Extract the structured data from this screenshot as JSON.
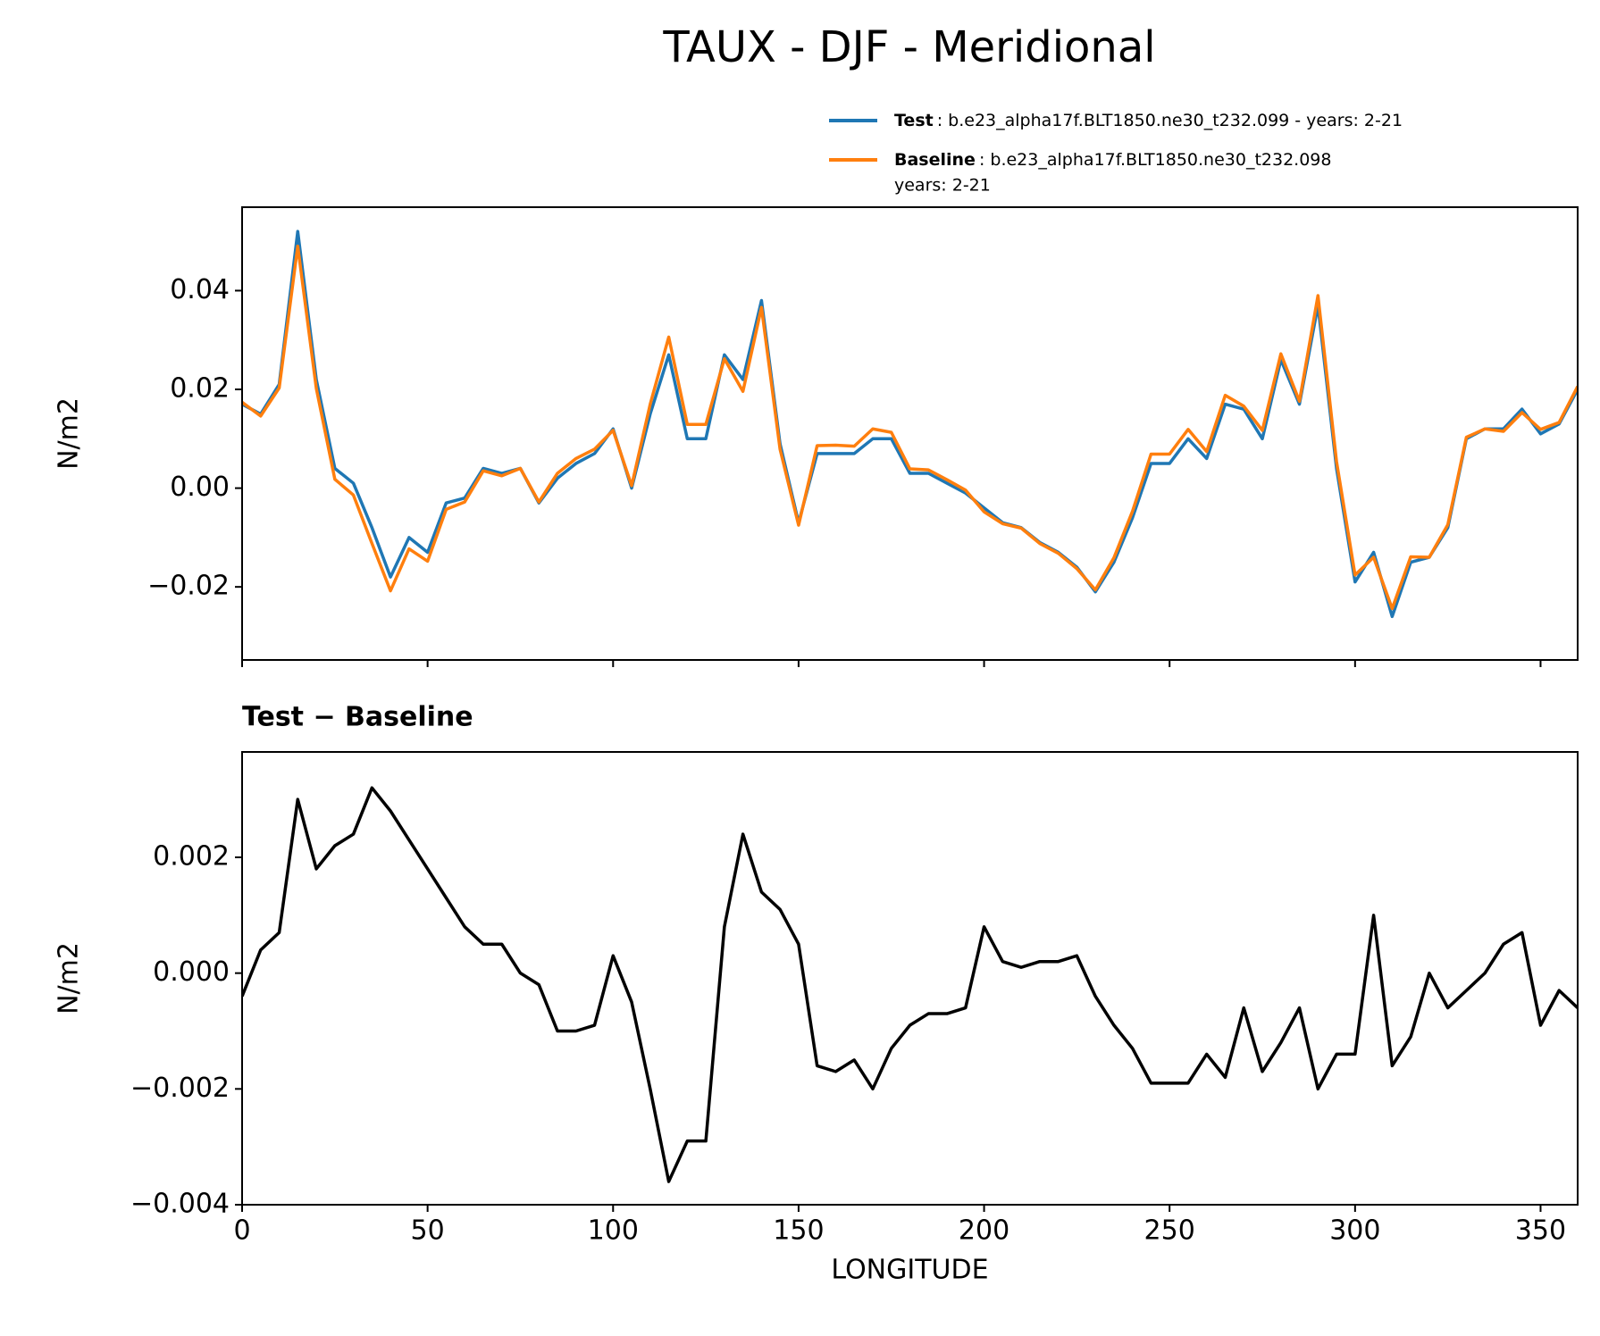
{
  "title": "TAUX - DJF - Meridional",
  "chart_data": [
    {
      "type": "line",
      "ylabel": "N/m2",
      "x": [
        0,
        5,
        10,
        15,
        20,
        25,
        30,
        35,
        40,
        45,
        50,
        55,
        60,
        65,
        70,
        75,
        80,
        85,
        90,
        95,
        100,
        105,
        110,
        115,
        120,
        125,
        130,
        135,
        140,
        145,
        150,
        155,
        160,
        165,
        170,
        175,
        180,
        185,
        190,
        195,
        200,
        205,
        210,
        215,
        220,
        225,
        230,
        235,
        240,
        245,
        250,
        255,
        260,
        265,
        270,
        275,
        280,
        285,
        290,
        295,
        300,
        305,
        310,
        315,
        320,
        325,
        330,
        335,
        340,
        345,
        350,
        355,
        360
      ],
      "series": [
        {
          "name": "Test",
          "description": ": b.e23_alpha17f.BLT1850.ne30_t232.099 - years: 2-21",
          "color": "#1f77b4",
          "values": [
            0.017,
            0.015,
            0.021,
            0.052,
            0.022,
            0.004,
            0.001,
            -0.008,
            -0.018,
            -0.01,
            -0.013,
            -0.003,
            -0.002,
            0.004,
            0.003,
            0.004,
            -0.003,
            0.002,
            0.005,
            0.007,
            0.012,
            0.0,
            0.015,
            0.027,
            0.01,
            0.01,
            0.027,
            0.022,
            0.038,
            0.009,
            -0.007,
            0.007,
            0.007,
            0.007,
            0.01,
            0.01,
            0.003,
            0.003,
            0.001,
            -0.001,
            -0.004,
            -0.007,
            -0.008,
            -0.011,
            -0.013,
            -0.016,
            -0.021,
            -0.015,
            -0.006,
            0.005,
            0.005,
            0.01,
            0.006,
            0.017,
            0.016,
            0.01,
            0.026,
            0.017,
            0.037,
            0.004,
            -0.019,
            -0.013,
            -0.026,
            -0.015,
            -0.014,
            -0.008,
            0.01,
            0.012,
            0.012,
            0.016,
            0.011,
            0.013,
            0.02
          ]
        },
        {
          "name": "Baseline",
          "description": ": b.e23_alpha17f.BLT1850.ne30_t232.098",
          "description_2": "years: 2-21",
          "color": "#ff7f0e",
          "values": [
            0.0174,
            0.0146,
            0.0203,
            0.049,
            0.0202,
            0.0018,
            -0.0014,
            -0.0112,
            -0.0208,
            -0.0123,
            -0.0148,
            -0.0043,
            -0.0028,
            0.0035,
            0.0025,
            0.004,
            -0.0028,
            0.003,
            0.006,
            0.0079,
            0.0117,
            0.0005,
            0.017,
            0.0306,
            0.0129,
            0.0129,
            0.0262,
            0.0196,
            0.0366,
            0.0079,
            -0.0075,
            0.0086,
            0.0087,
            0.0085,
            0.012,
            0.0113,
            0.0039,
            0.0037,
            0.0017,
            -0.0004,
            -0.0048,
            -0.0072,
            -0.0081,
            -0.0112,
            -0.0132,
            -0.0163,
            -0.0206,
            -0.0141,
            -0.0047,
            0.0069,
            0.0069,
            0.0119,
            0.0074,
            0.0188,
            0.0166,
            0.0117,
            0.0272,
            0.0176,
            0.039,
            0.0054,
            -0.0176,
            -0.014,
            -0.0244,
            -0.0139,
            -0.014,
            -0.0074,
            0.0103,
            0.012,
            0.0115,
            0.0153,
            0.0119,
            0.0133,
            0.0206
          ]
        }
      ],
      "xlim": [
        0,
        360
      ],
      "xticks": [
        0,
        50,
        100,
        150,
        200,
        250,
        300,
        350
      ],
      "show_xtick_labels": false,
      "ylim": [
        -0.0348,
        0.0569
      ],
      "yticks": [
        {
          "value": -0.02,
          "label": "−0.02"
        },
        {
          "value": 0,
          "label": "0.00"
        },
        {
          "value": 0.02,
          "label": "0.02"
        },
        0.04
      ],
      "legend": "upper right",
      "grid": false
    },
    {
      "type": "line",
      "title": "Test − Baseline",
      "xlabel": "LONGITUDE",
      "ylabel": "N/m2",
      "x": [
        0,
        5,
        10,
        15,
        20,
        25,
        30,
        35,
        40,
        45,
        50,
        55,
        60,
        65,
        70,
        75,
        80,
        85,
        90,
        95,
        100,
        105,
        110,
        115,
        120,
        125,
        130,
        135,
        140,
        145,
        150,
        155,
        160,
        165,
        170,
        175,
        180,
        185,
        190,
        195,
        200,
        205,
        210,
        215,
        220,
        225,
        230,
        235,
        240,
        245,
        250,
        255,
        260,
        265,
        270,
        275,
        280,
        285,
        290,
        295,
        300,
        305,
        310,
        315,
        320,
        325,
        330,
        335,
        340,
        345,
        350,
        355,
        360
      ],
      "series": [
        {
          "name": null,
          "color": "#000000",
          "values": [
            -0.0004,
            0.0004,
            0.0007,
            0.003,
            0.0018,
            0.0022,
            0.0024,
            0.0032,
            0.0028,
            0.0023,
            0.0018,
            0.0013,
            0.0008,
            0.0005,
            0.0005,
            0.0,
            -0.0002,
            -0.001,
            -0.001,
            -0.0009,
            0.0003,
            -0.0005,
            -0.002,
            -0.0036,
            -0.0029,
            -0.0029,
            0.0008,
            0.0024,
            0.0014,
            0.0011,
            0.0005,
            -0.0016,
            -0.0017,
            -0.0015,
            -0.002,
            -0.0013,
            -0.0009,
            -0.0007,
            -0.0007,
            -0.0006,
            0.0008,
            0.0002,
            0.0001,
            0.0002,
            0.0002,
            0.0003,
            -0.0004,
            -0.0009,
            -0.0013,
            -0.0019,
            -0.0019,
            -0.0019,
            -0.0014,
            -0.0018,
            -0.0006,
            -0.0017,
            -0.0012,
            -0.0006,
            -0.002,
            -0.0014,
            -0.0014,
            0.001,
            -0.0016,
            -0.0011,
            0.0,
            -0.0006,
            -0.0003,
            0.0,
            0.0005,
            0.0007,
            -0.0009,
            -0.0003,
            -0.0006
          ]
        }
      ],
      "xlim": [
        0,
        360
      ],
      "xticks": [
        0,
        50,
        100,
        150,
        200,
        250,
        300,
        350
      ],
      "show_xtick_labels": true,
      "ylim": [
        -0.004,
        0.00382
      ],
      "yticks": [
        {
          "value": -0.004,
          "label": "−0.004"
        },
        {
          "value": -0.002,
          "label": "−0.002"
        },
        {
          "value": 0,
          "label": "0.000"
        },
        0.002
      ],
      "grid": false
    }
  ]
}
